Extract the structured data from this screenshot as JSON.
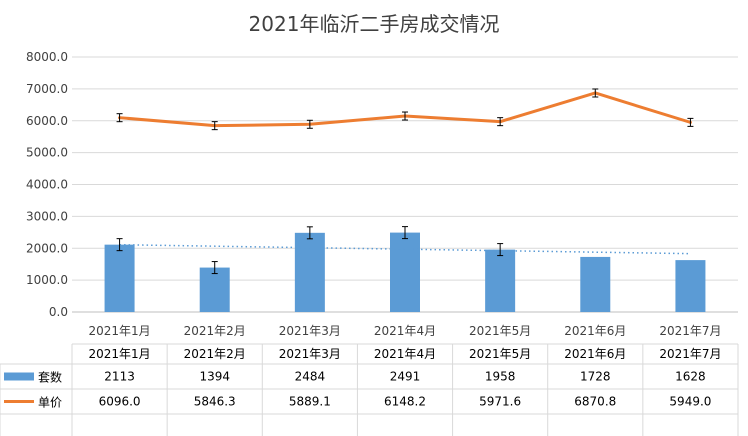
{
  "chart_data": {
    "type": "bar",
    "title": "2021年临沂二手房成交情况",
    "categories": [
      "2021年1月",
      "2021年2月",
      "2021年3月",
      "2021年4月",
      "2021年5月",
      "2021年6月",
      "2021年7月"
    ],
    "ylim": [
      0,
      8000
    ],
    "yticks": [
      "0.0",
      "1000.0",
      "2000.0",
      "3000.0",
      "4000.0",
      "5000.0",
      "6000.0",
      "7000.0",
      "8000.0"
    ],
    "grid": true,
    "legend": "data-table",
    "series": [
      {
        "name": "套数",
        "type": "bar",
        "color": "#5B9BD5",
        "values": [
          2113,
          1394,
          2484,
          2491,
          1958,
          1728,
          1628
        ],
        "display": [
          "2113",
          "1394",
          "2484",
          "2491",
          "1958",
          "1728",
          "1628"
        ],
        "error_bars": [
          true,
          true,
          true,
          true,
          true,
          false,
          false
        ],
        "trendline": "linear-dotted"
      },
      {
        "name": "单价",
        "type": "line",
        "color": "#ED7D31",
        "values": [
          6096.0,
          5846.3,
          5889.1,
          6148.2,
          5971.6,
          6870.8,
          5949.0
        ],
        "display": [
          "6096.0",
          "5846.3",
          "5889.1",
          "6148.2",
          "5971.6",
          "6870.8",
          "5949.0"
        ],
        "error_bars": [
          true,
          true,
          true,
          true,
          true,
          true,
          true
        ]
      }
    ]
  }
}
